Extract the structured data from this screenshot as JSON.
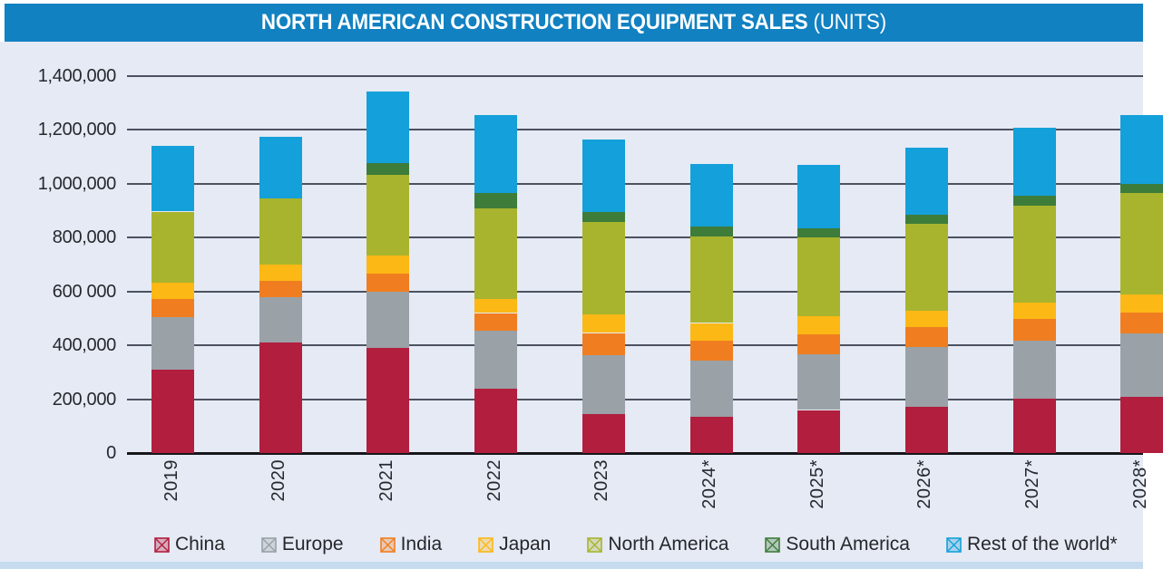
{
  "title": {
    "main": "NORTH AMERICAN CONSTRUCTION EQUIPMENT SALES",
    "units_suffix": " (UNITS)"
  },
  "colors": {
    "banner": "#1181c2",
    "chart_background": "#e5eaf4",
    "bottom_strip": "#c6dbee",
    "gridline": "#4c5260",
    "axis": "#16171b",
    "text": "#26282e"
  },
  "chart_data": {
    "type": "bar",
    "stacked": true,
    "title": "NORTH AMERICAN CONSTRUCTION EQUIPMENT SALES (UNITS)",
    "categories": [
      "2019",
      "2020",
      "2021",
      "2022",
      "2023",
      "2024*",
      "2025*",
      "2026*",
      "2027*",
      "2028*"
    ],
    "series": [
      {
        "name": "China",
        "color": "#b21e3e",
        "values": [
          310000,
          410000,
          390000,
          240000,
          145000,
          135000,
          160000,
          172000,
          203000,
          210000
        ]
      },
      {
        "name": "Europe",
        "color": "#9aa1a7",
        "values": [
          195000,
          170000,
          210000,
          215000,
          220000,
          209000,
          207000,
          222000,
          213000,
          235000
        ]
      },
      {
        "name": "India",
        "color": "#f07e21",
        "values": [
          67000,
          60000,
          67000,
          65000,
          81000,
          72000,
          75000,
          73000,
          81000,
          78000
        ]
      },
      {
        "name": "Japan",
        "color": "#fcb815",
        "values": [
          60000,
          60000,
          67000,
          53000,
          68000,
          67000,
          65000,
          61000,
          63000,
          67000
        ]
      },
      {
        "name": "North America",
        "color": "#a8b42e",
        "values": [
          265000,
          245000,
          300000,
          335000,
          343000,
          322000,
          293000,
          322000,
          360000,
          375000
        ]
      },
      {
        "name": "South America",
        "color": "#3e7c3a",
        "values": [
          0,
          0,
          43000,
          57000,
          37000,
          36000,
          36000,
          35000,
          36000,
          35000
        ]
      },
      {
        "name": "Rest of the world*",
        "color": "#14a0da",
        "values": [
          245000,
          230000,
          265000,
          290000,
          270000,
          234000,
          234000,
          250000,
          254000,
          255000
        ]
      }
    ],
    "y_axis": {
      "min": 0,
      "max": 1400000,
      "tick_values": [
        1400000,
        1200000,
        1000000,
        800000,
        600000,
        400000,
        200000,
        0
      ],
      "tick_labels": [
        "1,400,000",
        "1,200,000",
        "1,000,000",
        "800,000",
        "600 000",
        "400,000",
        "200,000",
        "0"
      ]
    },
    "x_labels_rotated_90": true,
    "grid": true,
    "legend_position": "bottom"
  }
}
